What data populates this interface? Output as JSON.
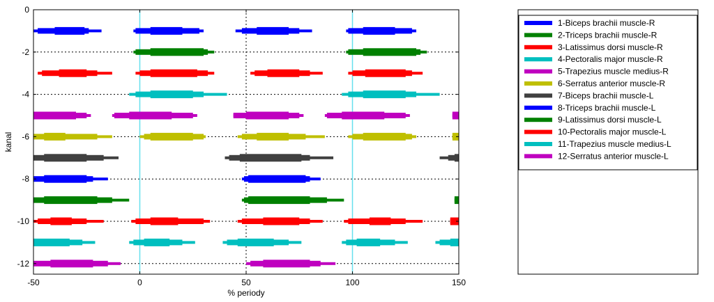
{
  "chart_data": {
    "type": "bar",
    "title": "",
    "xlabel": "% periody",
    "ylabel": "kanal",
    "xlim": [
      -50,
      150
    ],
    "ylim": [
      -12.5,
      0
    ],
    "xticks": [
      -50,
      0,
      50,
      100,
      150
    ],
    "yticks": [
      0,
      -2,
      -4,
      -6,
      -8,
      -10,
      -12
    ],
    "xtick_labels": [
      "-50",
      "0",
      "50",
      "100",
      "150"
    ],
    "ytick_labels": [
      "0",
      "-2",
      "-4",
      "-6",
      "-8",
      "-10",
      "-12"
    ],
    "grid": "dotted",
    "legend_position": "right",
    "reference_lines_x": [
      0,
      100
    ],
    "reference_line_color": "#66e0ee",
    "series": [
      {
        "name": "1-Biceps brachii muscle-R",
        "channel": -1,
        "color": "#0000ff",
        "segments": [
          {
            "outer": [
              -50,
              -18
            ],
            "mid": [
              -48,
              -24
            ],
            "inner": [
              -40,
              -26
            ]
          },
          {
            "outer": [
              -3,
              30
            ],
            "mid": [
              -2,
              28
            ],
            "inner": [
              5,
              20
            ]
          },
          {
            "outer": [
              45,
              81
            ],
            "mid": [
              48,
              75
            ],
            "inner": [
              55,
              70
            ]
          },
          {
            "outer": [
              97,
              130
            ],
            "mid": [
              98,
              128
            ],
            "inner": [
              105,
              120
            ]
          }
        ]
      },
      {
        "name": "2-Triceps brachii muscle-R",
        "channel": -2,
        "color": "#008000",
        "segments": [
          {
            "outer": [
              -3,
              35
            ],
            "mid": [
              -2,
              32
            ],
            "inner": [
              5,
              30
            ]
          },
          {
            "outer": [
              97,
              135
            ],
            "mid": [
              98,
              132
            ],
            "inner": [
              105,
              130
            ]
          }
        ]
      },
      {
        "name": "3-Latissimus dorsi muscle-R",
        "channel": -3,
        "color": "#ff0000",
        "segments": [
          {
            "outer": [
              -48,
              -13
            ],
            "mid": [
              -46,
              -20
            ],
            "inner": [
              -38,
              -25
            ]
          },
          {
            "outer": [
              -2,
              35
            ],
            "mid": [
              0,
              32
            ],
            "inner": [
              5,
              27
            ]
          },
          {
            "outer": [
              52,
              86
            ],
            "mid": [
              54,
              80
            ],
            "inner": [
              60,
              75
            ]
          },
          {
            "outer": [
              98,
              133
            ],
            "mid": [
              100,
              128
            ],
            "inner": [
              106,
              125
            ]
          }
        ]
      },
      {
        "name": "4-Pectoralis major muscle-R",
        "channel": -4,
        "color": "#00bfbf",
        "segments": [
          {
            "outer": [
              -5,
              41
            ],
            "mid": [
              -2,
              30
            ],
            "inner": [
              5,
              25
            ]
          },
          {
            "outer": [
              95,
              141
            ],
            "mid": [
              98,
              130
            ],
            "inner": [
              105,
              125
            ]
          }
        ]
      },
      {
        "name": "5-Trapezius muscle medius-R",
        "channel": -5,
        "color": "#bf00bf",
        "segments": [
          {
            "outer": [
              -50,
              -23
            ],
            "mid": [
              -50,
              -25
            ],
            "inner": [
              -50,
              -30
            ]
          },
          {
            "outer": [
              -13,
              27
            ],
            "mid": [
              -12,
              25
            ],
            "inner": [
              -5,
              15
            ]
          },
          {
            "outer": [
              44,
              77
            ],
            "mid": [
              44,
              75
            ],
            "inner": [
              50,
              70
            ]
          },
          {
            "outer": [
              87,
              127
            ],
            "mid": [
              88,
              125
            ],
            "inner": [
              95,
              115
            ]
          },
          {
            "outer": [
              147,
              150
            ],
            "mid": [
              147,
              150
            ],
            "inner": [
              147,
              150
            ]
          }
        ]
      },
      {
        "name": "6-Serratus anterior muscle-R",
        "channel": -6,
        "color": "#bfbf00",
        "segments": [
          {
            "outer": [
              -50,
              -13
            ],
            "mid": [
              -50,
              -20
            ],
            "inner": [
              -45,
              -35
            ]
          },
          {
            "outer": [
              0,
              31
            ],
            "mid": [
              2,
              30
            ],
            "inner": [
              5,
              25
            ]
          },
          {
            "outer": [
              46,
              87
            ],
            "mid": [
              48,
              78
            ],
            "inner": [
              55,
              70
            ]
          },
          {
            "outer": [
              98,
              130
            ],
            "mid": [
              100,
              128
            ],
            "inner": [
              105,
              125
            ]
          },
          {
            "outer": [
              147,
              150
            ],
            "mid": [
              147,
              150
            ],
            "inner": [
              147,
              150
            ]
          }
        ]
      },
      {
        "name": "7-Biceps brachii muscle-L",
        "channel": -7,
        "color": "#404040",
        "segments": [
          {
            "outer": [
              -50,
              -10
            ],
            "mid": [
              -50,
              -17
            ],
            "inner": [
              -45,
              -25
            ]
          },
          {
            "outer": [
              40,
              91
            ],
            "mid": [
              42,
              80
            ],
            "inner": [
              47,
              76
            ]
          },
          {
            "outer": [
              141,
              150
            ],
            "mid": [
              145,
              150
            ],
            "inner": [
              148,
              150
            ]
          }
        ]
      },
      {
        "name": "8-Triceps brachii muscle-L",
        "channel": -8,
        "color": "#0000ff",
        "segments": [
          {
            "outer": [
              -50,
              -15
            ],
            "mid": [
              -50,
              -22
            ],
            "inner": [
              -45,
              -25
            ]
          },
          {
            "outer": [
              48,
              85
            ],
            "mid": [
              49,
              80
            ],
            "inner": [
              51,
              78
            ]
          }
        ]
      },
      {
        "name": "9-Latissimus dorsi muscle-L",
        "channel": -9,
        "color": "#008000",
        "segments": [
          {
            "outer": [
              -50,
              -5
            ],
            "mid": [
              -50,
              -13
            ],
            "inner": [
              -45,
              -20
            ]
          },
          {
            "outer": [
              48,
              96
            ],
            "mid": [
              49,
              88
            ],
            "inner": [
              51,
              80
            ]
          },
          {
            "outer": [
              148,
              150
            ],
            "mid": [
              148,
              150
            ],
            "inner": [
              148,
              150
            ]
          }
        ]
      },
      {
        "name": "10-Pectoralis major muscle-L",
        "channel": -10,
        "color": "#ff0000",
        "segments": [
          {
            "outer": [
              -50,
              -17
            ],
            "mid": [
              -48,
              -25
            ],
            "inner": [
              -42,
              -32
            ]
          },
          {
            "outer": [
              -4,
              33
            ],
            "mid": [
              -2,
              30
            ],
            "inner": [
              5,
              18
            ]
          },
          {
            "outer": [
              46,
              86
            ],
            "mid": [
              48,
              80
            ],
            "inner": [
              58,
              75
            ]
          },
          {
            "outer": [
              96,
              133
            ],
            "mid": [
              98,
              125
            ],
            "inner": [
              108,
              118
            ]
          },
          {
            "outer": [
              146,
              150
            ],
            "mid": [
              146,
              150
            ],
            "inner": [
              146,
              150
            ]
          }
        ]
      },
      {
        "name": "11-Trapezius muscle medius-L",
        "channel": -11,
        "color": "#00bfbf",
        "segments": [
          {
            "outer": [
              -50,
              -21
            ],
            "mid": [
              -50,
              -27
            ],
            "inner": [
              -50,
              -33
            ]
          },
          {
            "outer": [
              -5,
              26
            ],
            "mid": [
              -3,
              20
            ],
            "inner": [
              2,
              14
            ]
          },
          {
            "outer": [
              39,
              76
            ],
            "mid": [
              41,
              70
            ],
            "inner": [
              46,
              63
            ]
          },
          {
            "outer": [
              95,
              126
            ],
            "mid": [
              97,
              120
            ],
            "inner": [
              102,
              113
            ]
          },
          {
            "outer": [
              139,
              150
            ],
            "mid": [
              141,
              150
            ],
            "inner": [
              146,
              150
            ]
          }
        ]
      },
      {
        "name": "12-Serratus anterior muscle-L",
        "channel": -12,
        "color": "#bf00bf",
        "segments": [
          {
            "outer": [
              -50,
              -9
            ],
            "mid": [
              -50,
              -15
            ],
            "inner": [
              -42,
              -22
            ]
          },
          {
            "outer": [
              50,
              92
            ],
            "mid": [
              52,
              85
            ],
            "inner": [
              58,
              80
            ]
          }
        ]
      }
    ]
  }
}
